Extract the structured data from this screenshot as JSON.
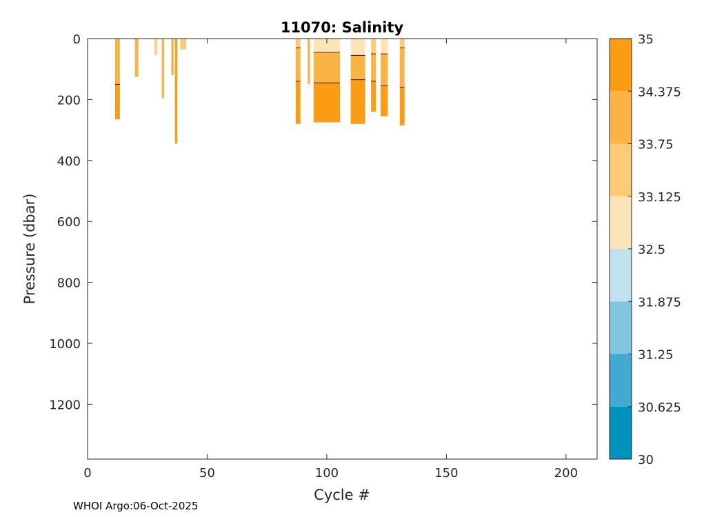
{
  "chart_data": {
    "type": "heatmap",
    "title": "11070:  Salinity",
    "xlabel": "Cycle #",
    "ylabel": "Pressure (dbar)",
    "xlim": [
      0,
      213
    ],
    "ylim": [
      0,
      1380
    ],
    "y_reversed": true,
    "xticks": [
      0,
      50,
      100,
      150,
      200
    ],
    "yticks": [
      0,
      200,
      400,
      600,
      800,
      1000,
      1200
    ],
    "colorbar": {
      "range": [
        30,
        35
      ],
      "ticks": [
        "30",
        "30.625",
        "31.25",
        "31.875",
        "32.5",
        "33.125",
        "33.75",
        "34.375",
        "35"
      ],
      "levels": [
        {
          "from": 30,
          "to": 30.625,
          "color": "#0093c0"
        },
        {
          "from": 30.625,
          "to": 31.25,
          "color": "#42aad0"
        },
        {
          "from": 31.25,
          "to": 31.875,
          "color": "#82c5e1"
        },
        {
          "from": 31.875,
          "to": 32.5,
          "color": "#c0e1ed"
        },
        {
          "from": 32.5,
          "to": 33.125,
          "color": "#fbe4b8"
        },
        {
          "from": 33.125,
          "to": 33.75,
          "color": "#fbcb76"
        },
        {
          "from": 33.75,
          "to": 34.375,
          "color": "#fbb346"
        },
        {
          "from": 34.375,
          "to": 35,
          "color": "#fa9d14"
        }
      ]
    },
    "profiles": [
      {
        "cycle": 12.5,
        "width": 2,
        "max_p": 265,
        "layers": [
          {
            "top": 0,
            "bottom": 150,
            "color": "#fbb346"
          },
          {
            "top": 150,
            "bottom": 265,
            "color": "#fa9d14"
          }
        ]
      },
      {
        "cycle": 20.5,
        "width": 1.5,
        "max_p": 125,
        "layers": [
          {
            "top": 0,
            "bottom": 125,
            "color": "#fbb346"
          }
        ]
      },
      {
        "cycle": 28.5,
        "width": 1,
        "max_p": 55,
        "layers": [
          {
            "top": 0,
            "bottom": 55,
            "color": "#fbcb76"
          }
        ]
      },
      {
        "cycle": 31.5,
        "width": 1,
        "max_p": 195,
        "layers": [
          {
            "top": 0,
            "bottom": 195,
            "color": "#fbb346"
          }
        ]
      },
      {
        "cycle": 35.5,
        "width": 1,
        "max_p": 120,
        "layers": [
          {
            "top": 0,
            "bottom": 120,
            "color": "#fbb346"
          }
        ]
      },
      {
        "cycle": 37.0,
        "width": 1,
        "max_p": 345,
        "layers": [
          {
            "top": 0,
            "bottom": 345,
            "color": "#fa9d14"
          }
        ]
      },
      {
        "cycle": 40.0,
        "width": 2.5,
        "max_p": 35,
        "layers": [
          {
            "top": 0,
            "bottom": 35,
            "color": "#fbcb76"
          }
        ]
      },
      {
        "cycle": 88.0,
        "width": 2,
        "max_p": 280,
        "layers": [
          {
            "top": 0,
            "bottom": 30,
            "color": "#fbcb76"
          },
          {
            "top": 30,
            "bottom": 140,
            "color": "#fbb346"
          },
          {
            "top": 140,
            "bottom": 280,
            "color": "#fa9d14"
          }
        ]
      },
      {
        "cycle": 92.5,
        "width": 1,
        "max_p": 150,
        "layers": [
          {
            "top": 0,
            "bottom": 150,
            "color": "#fbb346"
          }
        ]
      },
      {
        "cycle": 100.0,
        "width": 11,
        "max_p": 275,
        "layers": [
          {
            "top": 0,
            "bottom": 45,
            "color": "#fbe4b8"
          },
          {
            "top": 45,
            "bottom": 145,
            "color": "#fbb346"
          },
          {
            "top": 145,
            "bottom": 275,
            "color": "#fa9d14"
          }
        ]
      },
      {
        "cycle": 113.0,
        "width": 6,
        "max_p": 280,
        "layers": [
          {
            "top": 0,
            "bottom": 55,
            "color": "#fbe4b8"
          },
          {
            "top": 55,
            "bottom": 135,
            "color": "#fbb346"
          },
          {
            "top": 135,
            "bottom": 280,
            "color": "#fa9d14"
          }
        ]
      },
      {
        "cycle": 119.5,
        "width": 2,
        "max_p": 240,
        "layers": [
          {
            "top": 0,
            "bottom": 50,
            "color": "#fbcb76"
          },
          {
            "top": 50,
            "bottom": 140,
            "color": "#fbb346"
          },
          {
            "top": 140,
            "bottom": 240,
            "color": "#fa9d14"
          }
        ]
      },
      {
        "cycle": 124.0,
        "width": 3,
        "max_p": 255,
        "layers": [
          {
            "top": 0,
            "bottom": 50,
            "color": "#fbe4b8"
          },
          {
            "top": 50,
            "bottom": 155,
            "color": "#fbb346"
          },
          {
            "top": 155,
            "bottom": 255,
            "color": "#fa9d14"
          }
        ]
      },
      {
        "cycle": 131.5,
        "width": 2,
        "max_p": 285,
        "layers": [
          {
            "top": 0,
            "bottom": 30,
            "color": "#fbcb76"
          },
          {
            "top": 30,
            "bottom": 160,
            "color": "#fbb346"
          },
          {
            "top": 160,
            "bottom": 285,
            "color": "#fa9d14"
          }
        ]
      }
    ]
  },
  "footer": "WHOI Argo:06-Oct-2025"
}
